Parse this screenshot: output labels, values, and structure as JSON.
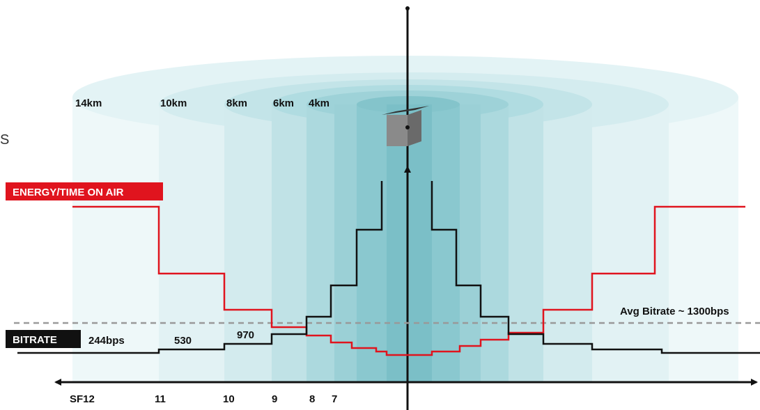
{
  "cut_text": "S",
  "distances": [
    "14km",
    "10km",
    "8km",
    "6km",
    "4km"
  ],
  "energy_label": "ENERGY/TIME ON AIR",
  "bitrate_label": "BITRATE",
  "bitrates": [
    "244bps",
    "530",
    "970"
  ],
  "avg_bitrate": "Avg Bitrate ~ 1300bps",
  "spreading_factors": [
    "SF12",
    "11",
    "10",
    "9",
    "8",
    "7"
  ]
}
